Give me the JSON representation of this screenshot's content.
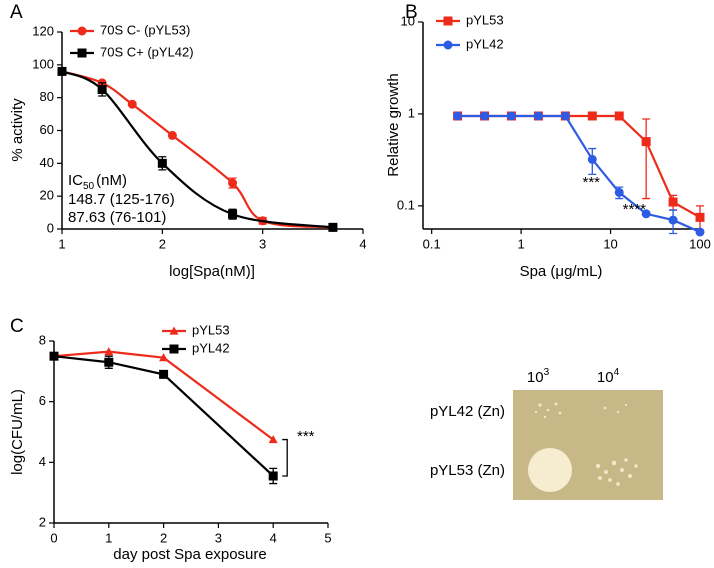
{
  "chart_data": [
    {
      "type": "line",
      "label": "A",
      "line_style": "smooth",
      "xlabel": "log[Spa(nM)]",
      "ylabel": "% activity",
      "xlim": [
        1,
        4
      ],
      "xticks": [
        1,
        2,
        3,
        4
      ],
      "ylim": [
        0,
        120
      ],
      "yticks": [
        0,
        20,
        40,
        60,
        80,
        100,
        120
      ],
      "series": [
        {
          "name": "70S C- (pYL53)",
          "color": "#ee2a1b",
          "marker": "circle",
          "x": [
            1,
            1.4,
            1.7,
            2.1,
            2.7,
            3,
            3.7
          ],
          "values": [
            96,
            89,
            76,
            57,
            28,
            5,
            1
          ],
          "errors": [
            null,
            null,
            null,
            null,
            3,
            2,
            null
          ]
        },
        {
          "name": "70S C+ (pYL42)",
          "color": "#000000",
          "marker": "square",
          "x": [
            1,
            1.4,
            2,
            2.7,
            3.7
          ],
          "values": [
            96,
            85,
            40,
            9,
            1
          ],
          "errors": [
            null,
            4,
            4,
            3,
            null
          ]
        }
      ],
      "annotations": [
        {
          "text": "IC",
          "sub": "50",
          "tail": "(nM)",
          "color": "#000000"
        },
        {
          "text": "148.7 (125-176)",
          "color": "#ee2a1b"
        },
        {
          "text": "87.63 (76-101)",
          "color": "#000000"
        }
      ]
    },
    {
      "type": "line",
      "label": "B",
      "line_style": "straight",
      "xlabel": "Spa (μg/mL)",
      "ylabel": "Relative growth",
      "xscale": "log",
      "yscale": "log",
      "xlim": [
        0.08,
        100
      ],
      "xticks": [
        0.1,
        1,
        10,
        100
      ],
      "ylim": [
        0.056,
        10
      ],
      "yticks": [
        0.1,
        1,
        10
      ],
      "series": [
        {
          "name": "pYL53",
          "color": "#ee2a1b",
          "marker": "square",
          "x": [
            0.195,
            0.39,
            0.78,
            1.56,
            3.125,
            6.25,
            12.5,
            25,
            50,
            100
          ],
          "values": [
            0.95,
            0.95,
            0.95,
            0.95,
            0.95,
            0.95,
            0.95,
            0.5,
            0.11,
            0.075
          ],
          "errors": [
            null,
            null,
            null,
            null,
            null,
            null,
            null,
            0.38,
            0.02,
            0.025
          ]
        },
        {
          "name": "pYL42",
          "color": "#2d5be3",
          "marker": "circle",
          "x": [
            0.195,
            0.39,
            0.78,
            1.56,
            3.125,
            6.25,
            12.5,
            25,
            50,
            100
          ],
          "values": [
            0.95,
            0.95,
            0.95,
            0.95,
            0.95,
            0.32,
            0.14,
            0.082,
            0.07,
            0.052
          ],
          "errors": [
            null,
            null,
            null,
            null,
            null,
            0.1,
            0.02,
            null,
            0.02,
            null
          ]
        }
      ],
      "annotations": [
        {
          "text": "***"
        },
        {
          "text": "****"
        }
      ]
    },
    {
      "type": "line",
      "label": "C",
      "line_style": "straight",
      "xlabel": "day post Spa exposure",
      "ylabel": "log(CFU/mL)",
      "xlim": [
        0,
        5
      ],
      "xticks": [
        0,
        1,
        2,
        3,
        4,
        5
      ],
      "ylim": [
        2,
        8
      ],
      "yticks": [
        2,
        4,
        6,
        8
      ],
      "series": [
        {
          "name": "pYL53",
          "color": "#ee2a1b",
          "marker": "triangle",
          "x": [
            0,
            1,
            2,
            4
          ],
          "values": [
            7.5,
            7.65,
            7.45,
            4.75
          ],
          "errors": [
            null,
            null,
            null,
            null
          ]
        },
        {
          "name": "pYL42",
          "color": "#000000",
          "marker": "square",
          "x": [
            0,
            1,
            2,
            4
          ],
          "values": [
            7.5,
            7.3,
            6.9,
            3.55
          ],
          "errors": [
            null,
            0.2,
            null,
            0.25
          ]
        }
      ],
      "annotations": [
        {
          "text": "***"
        }
      ]
    }
  ],
  "panel_d": {
    "columns": [
      {
        "base": "10",
        "exp": "3"
      },
      {
        "base": "10",
        "exp": "4"
      }
    ],
    "rows": [
      "pYL42 (Zn)",
      "pYL53 (Zn)"
    ]
  }
}
